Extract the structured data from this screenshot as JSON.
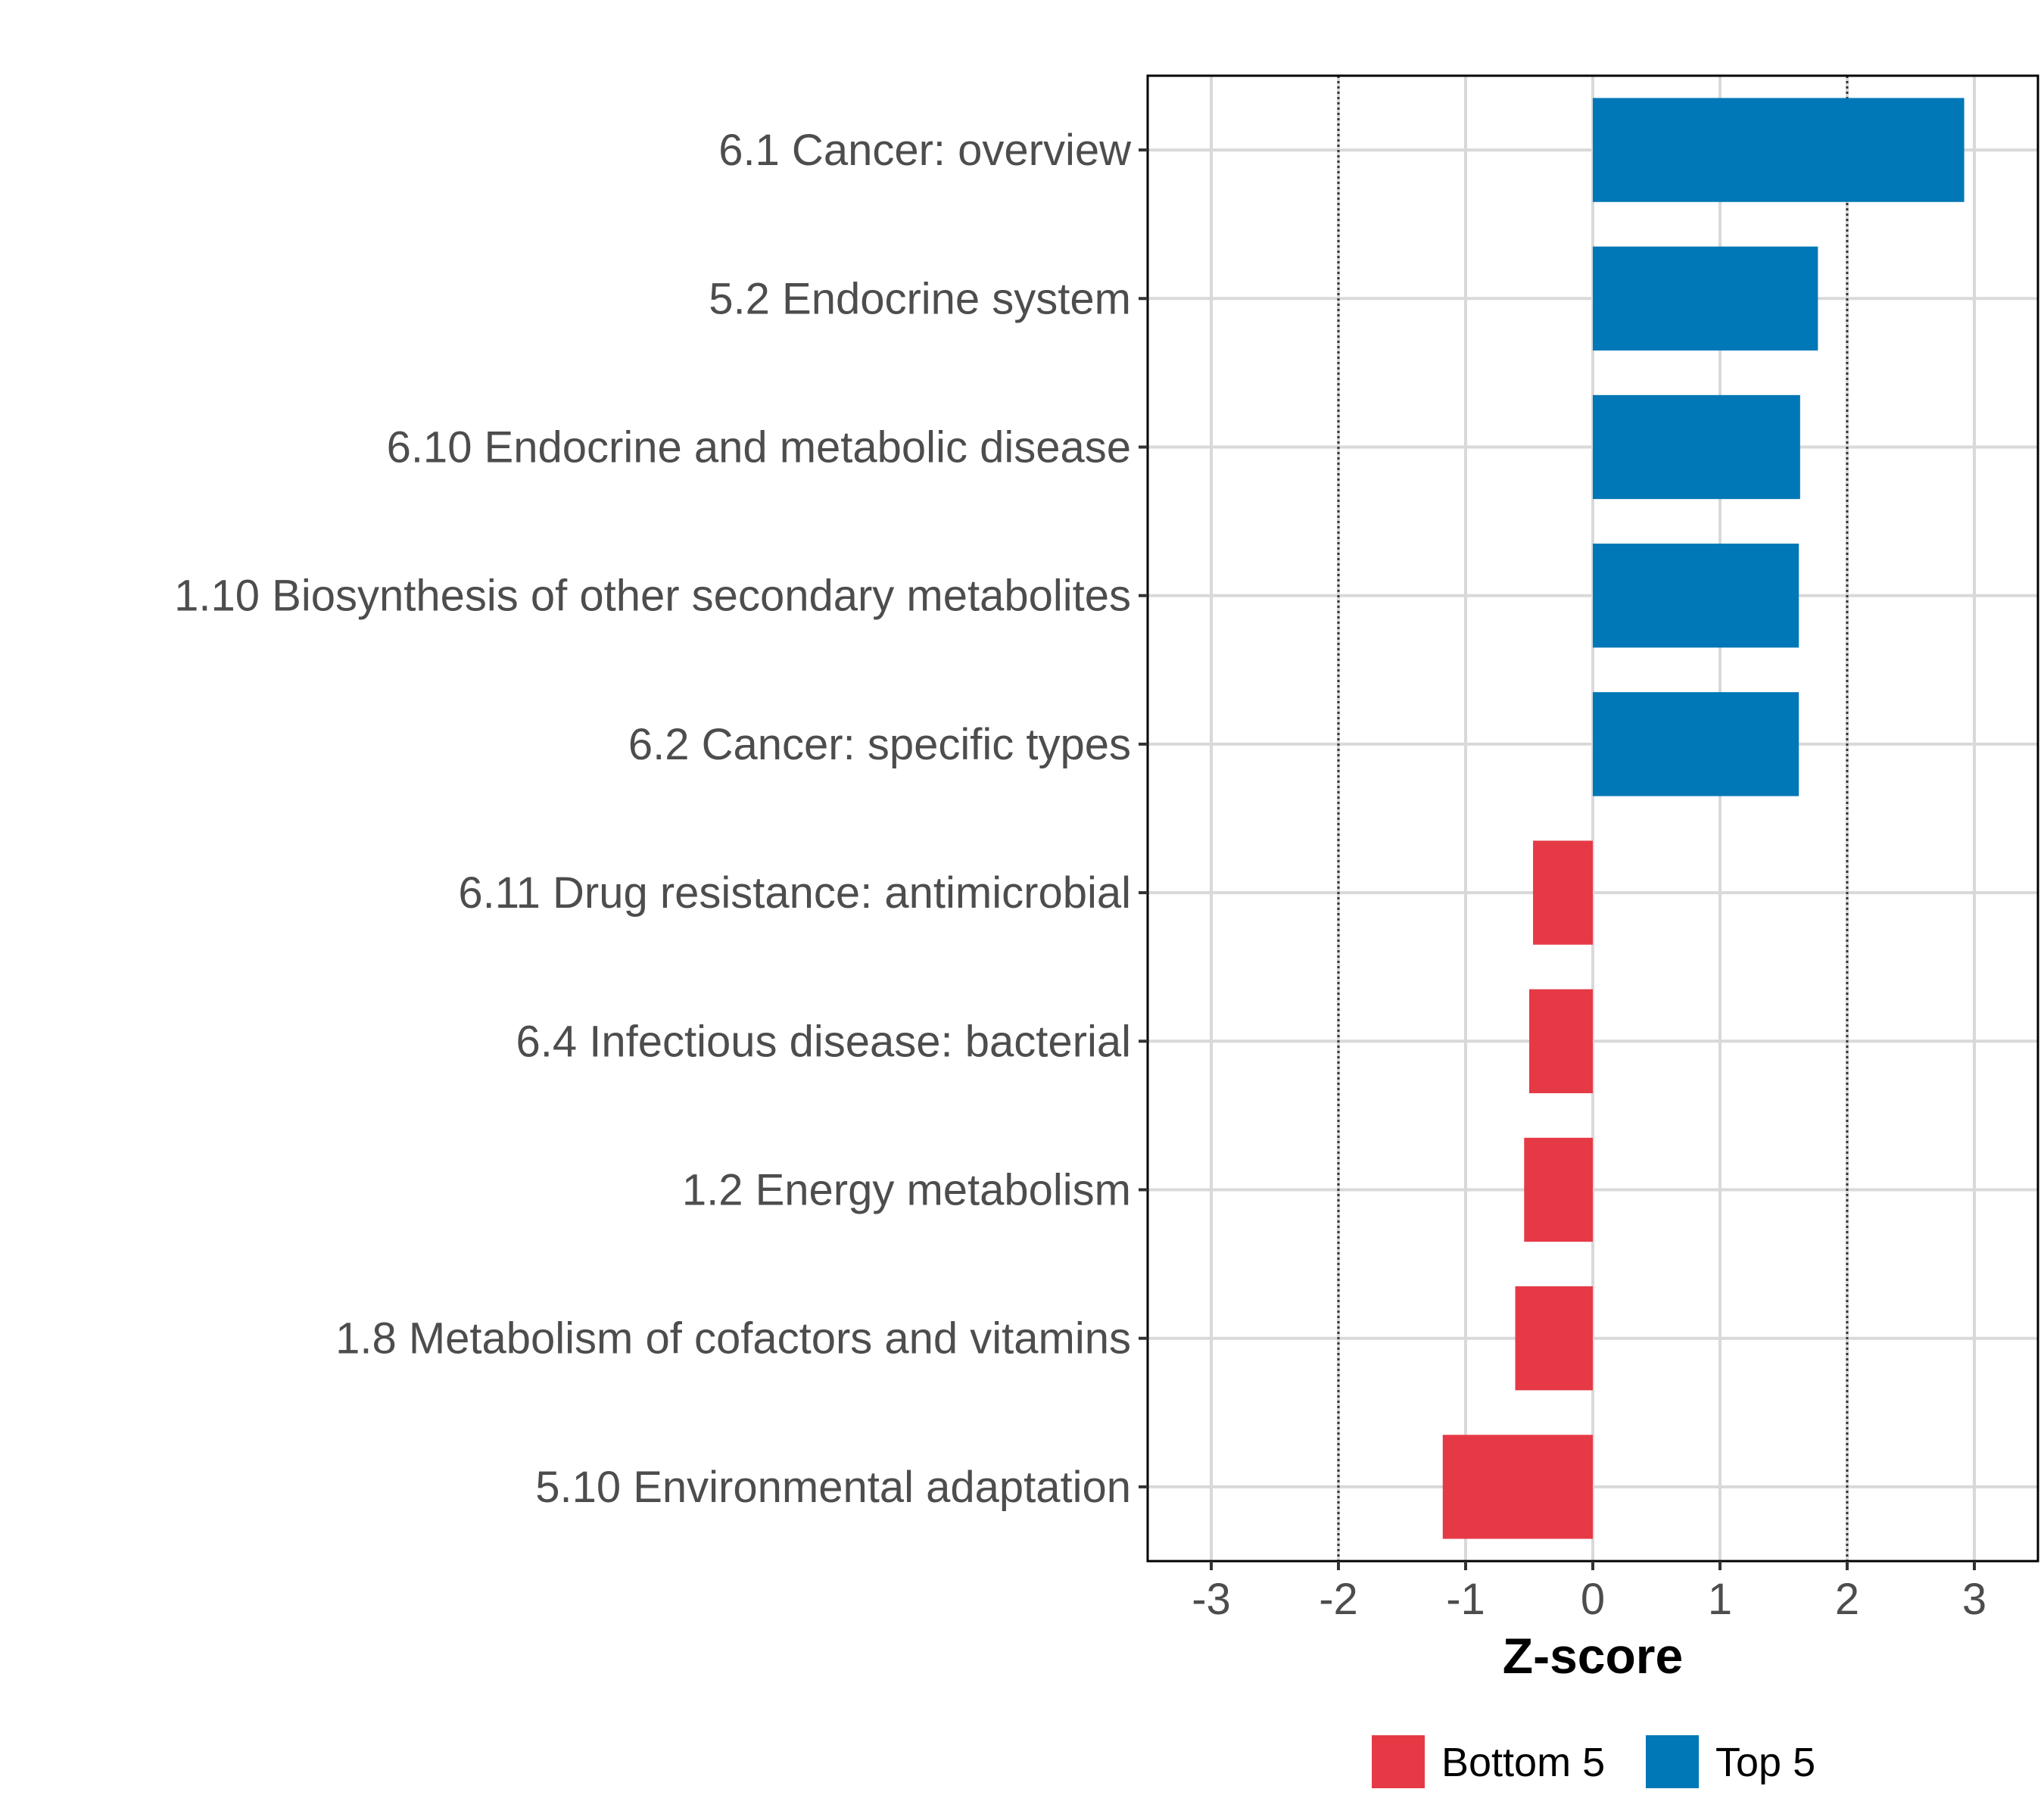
{
  "chart_data": {
    "type": "bar",
    "orientation": "horizontal",
    "title": "",
    "xlabel": "Z-score",
    "ylabel": "",
    "xlim": [
      -3.5,
      3.5
    ],
    "xticks": [
      "-3",
      "-2",
      "-1",
      "0",
      "1",
      "2",
      "3"
    ],
    "reference_lines": [
      -2,
      2
    ],
    "grid": true,
    "legend_position": "bottom",
    "categories": [
      "6.1 Cancer: overview",
      "5.2 Endocrine system",
      "6.10 Endocrine and metabolic disease",
      "1.10 Biosynthesis of other secondary metabolites",
      "6.2 Cancer: specific types",
      "6.11 Drug resistance: antimicrobial",
      "6.4 Infectious disease: bacterial",
      "1.2 Energy metabolism",
      "1.8 Metabolism of cofactors and vitamins",
      "5.10 Environmental adaptation"
    ],
    "values": [
      2.92,
      1.77,
      1.63,
      1.62,
      1.62,
      -0.47,
      -0.5,
      -0.54,
      -0.61,
      -1.18
    ],
    "groups": [
      "Top 5",
      "Top 5",
      "Top 5",
      "Top 5",
      "Top 5",
      "Bottom 5",
      "Bottom 5",
      "Bottom 5",
      "Bottom 5",
      "Bottom 5"
    ],
    "legend": [
      {
        "name": "Bottom 5",
        "color": "#e63946"
      },
      {
        "name": "Top 5",
        "color": "#0077b6"
      }
    ]
  }
}
